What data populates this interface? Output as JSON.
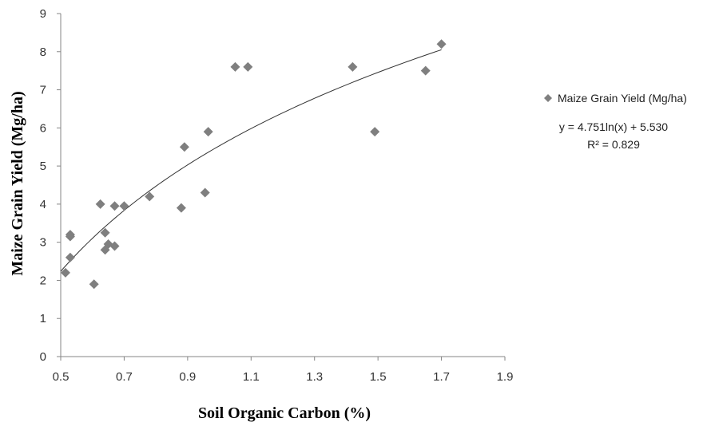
{
  "chart_data": {
    "type": "scatter",
    "xlabel": "Soil Organic Carbon (%)",
    "ylabel": "Maize Grain Yield (Mg/ha)",
    "xlim": [
      0.5,
      1.9
    ],
    "ylim": [
      0,
      9
    ],
    "x_ticks": [
      "0.5",
      "0.7",
      "0.9",
      "1.1",
      "1.3",
      "1.5",
      "1.7",
      "1.9"
    ],
    "y_ticks": [
      "0",
      "1",
      "2",
      "3",
      "4",
      "5",
      "6",
      "7",
      "8",
      "9"
    ],
    "grid": false,
    "legend_position": "right",
    "marker_color": "#7f7f7f",
    "trendline_color": "#333333",
    "series": [
      {
        "name": "Maize Grain Yield (Mg/ha)",
        "marker": "diamond",
        "points": [
          [
            0.515,
            2.2
          ],
          [
            0.53,
            2.6
          ],
          [
            0.53,
            3.15
          ],
          [
            0.53,
            3.2
          ],
          [
            0.605,
            1.9
          ],
          [
            0.625,
            4.0
          ],
          [
            0.64,
            3.25
          ],
          [
            0.64,
            2.8
          ],
          [
            0.65,
            2.95
          ],
          [
            0.67,
            2.9
          ],
          [
            0.67,
            3.95
          ],
          [
            0.7,
            3.95
          ],
          [
            0.78,
            4.2
          ],
          [
            0.88,
            3.9
          ],
          [
            0.89,
            5.5
          ],
          [
            0.955,
            4.3
          ],
          [
            0.965,
            5.9
          ],
          [
            1.05,
            7.6
          ],
          [
            1.09,
            7.6
          ],
          [
            1.42,
            7.6
          ],
          [
            1.49,
            5.9
          ],
          [
            1.65,
            7.5
          ],
          [
            1.7,
            8.2
          ]
        ]
      }
    ],
    "trendline": {
      "type": "logarithmic",
      "a": 4.751,
      "b": 5.53,
      "x_from": 0.5,
      "x_to": 1.7
    },
    "equation": "y = 4.751ln(x) + 5.530",
    "r2": "R² = 0.829"
  }
}
